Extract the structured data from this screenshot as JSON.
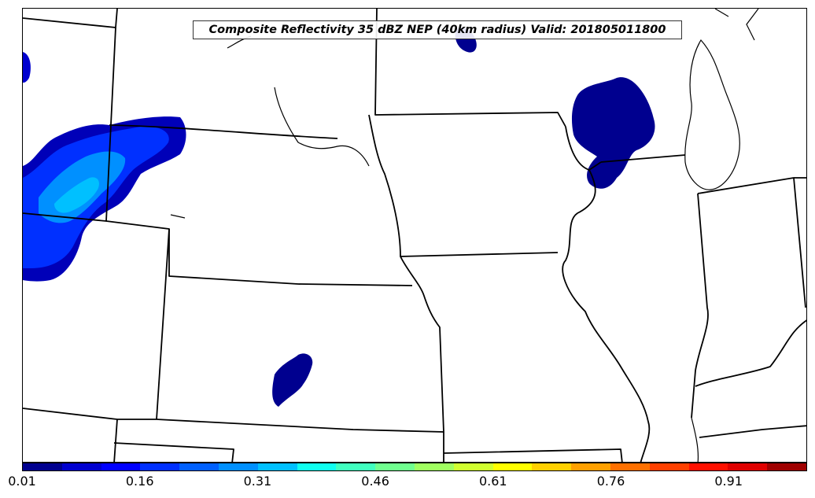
{
  "map": {
    "title": "Composite Reflectivity 35 dBZ NEP (40km radius) Valid: 201805011800",
    "field": "Composite Reflectivity 35 dBZ NEP",
    "radius": "40km radius",
    "valid_time": "201805011800"
  },
  "colorbar": {
    "colors": [
      "#00008f",
      "#0000cf",
      "#0000ff",
      "#0030ff",
      "#0060ff",
      "#0090ff",
      "#00c0ff",
      "#10ffef",
      "#40ffbf",
      "#70ff8f",
      "#a0ff60",
      "#d0ff30",
      "#ffff00",
      "#ffd000",
      "#ffa000",
      "#ff7000",
      "#ff4000",
      "#ff1000",
      "#df0000",
      "#9f0000"
    ],
    "tick_labels": [
      "0.01",
      "0.16",
      "0.31",
      "0.46",
      "0.61",
      "0.76",
      "0.91"
    ]
  }
}
